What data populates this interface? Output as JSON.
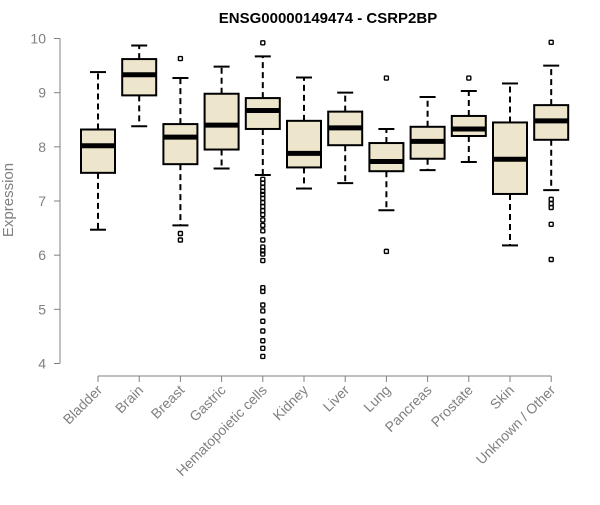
{
  "chart_data": {
    "type": "box",
    "title": "ENSG00000149474 - CSRP2BP",
    "ylabel": "Expression",
    "ylim": [
      4,
      10
    ],
    "yticks": [
      4,
      5,
      6,
      7,
      8,
      9,
      10
    ],
    "grid": false,
    "box_color": "#EDE6CC",
    "categories": [
      "Bladder",
      "Brain",
      "Breast",
      "Gastric",
      "Hematopoietic cells",
      "Kidney",
      "Liver",
      "Lung",
      "Pancreas",
      "Prostate",
      "Skin",
      "Unknown / Other"
    ],
    "boxes": [
      {
        "category": "Bladder",
        "whisker_low": 6.47,
        "q1": 7.52,
        "median": 8.02,
        "q3": 8.32,
        "whisker_high": 9.38,
        "outliers": []
      },
      {
        "category": "Brain",
        "whisker_low": 8.38,
        "q1": 8.95,
        "median": 9.33,
        "q3": 9.62,
        "whisker_high": 9.87,
        "outliers": []
      },
      {
        "category": "Breast",
        "whisker_low": 6.55,
        "q1": 7.68,
        "median": 8.18,
        "q3": 8.42,
        "whisker_high": 9.27,
        "outliers": [
          6.4,
          6.28,
          9.63
        ]
      },
      {
        "category": "Gastric",
        "whisker_low": 7.6,
        "q1": 7.95,
        "median": 8.4,
        "q3": 8.98,
        "whisker_high": 9.48,
        "outliers": []
      },
      {
        "category": "Hematopoietic cells",
        "whisker_low": 7.48,
        "q1": 8.33,
        "median": 8.67,
        "q3": 8.9,
        "whisker_high": 9.67,
        "outliers": [
          9.92,
          7.4,
          7.33,
          7.25,
          7.18,
          7.12,
          7.05,
          6.97,
          6.9,
          6.82,
          6.75,
          6.65,
          6.55,
          6.45,
          6.28,
          6.15,
          6.08,
          6.02,
          5.9,
          5.4,
          5.33,
          5.08,
          4.97,
          4.78,
          4.6,
          4.42,
          4.28,
          4.13
        ]
      },
      {
        "category": "Kidney",
        "whisker_low": 7.23,
        "q1": 7.62,
        "median": 7.88,
        "q3": 8.48,
        "whisker_high": 9.28,
        "outliers": []
      },
      {
        "category": "Liver",
        "whisker_low": 7.33,
        "q1": 8.03,
        "median": 8.35,
        "q3": 8.65,
        "whisker_high": 9.0,
        "outliers": []
      },
      {
        "category": "Lung",
        "whisker_low": 6.83,
        "q1": 7.55,
        "median": 7.73,
        "q3": 8.07,
        "whisker_high": 8.33,
        "outliers": [
          9.27,
          6.07
        ]
      },
      {
        "category": "Pancreas",
        "whisker_low": 7.57,
        "q1": 7.78,
        "median": 8.1,
        "q3": 8.37,
        "whisker_high": 8.92,
        "outliers": []
      },
      {
        "category": "Prostate",
        "whisker_low": 7.72,
        "q1": 8.2,
        "median": 8.33,
        "q3": 8.57,
        "whisker_high": 9.03,
        "outliers": [
          9.27
        ]
      },
      {
        "category": "Skin",
        "whisker_low": 6.18,
        "q1": 7.13,
        "median": 7.77,
        "q3": 8.45,
        "whisker_high": 9.17,
        "outliers": []
      },
      {
        "category": "Unknown / Other",
        "whisker_low": 7.2,
        "q1": 8.13,
        "median": 8.48,
        "q3": 8.77,
        "whisker_high": 9.5,
        "outliers": [
          9.93,
          7.03,
          6.95,
          6.88,
          6.57,
          5.92
        ]
      }
    ]
  }
}
